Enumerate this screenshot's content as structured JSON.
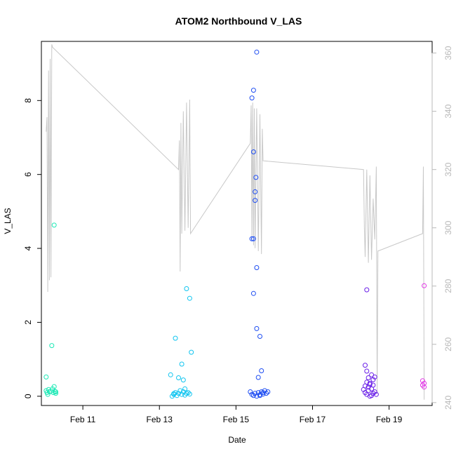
{
  "chart_data": {
    "type": "scatter",
    "title": "ATOM2 Northbound V_LAS",
    "xlabel": "Date",
    "ylabel": "V_LAS",
    "xlim": [
      "2024-02-09T22:00",
      "2024-02-20T03:00"
    ],
    "ylim": [
      -0.25,
      9.6
    ],
    "ylim_right": [
      239,
      364
    ],
    "x_ticks": [
      {
        "label": "Feb 11",
        "x": "2024-02-11T00:00"
      },
      {
        "label": "Feb 13",
        "x": "2024-02-13T00:00"
      },
      {
        "label": "Feb 15",
        "x": "2024-02-15T00:00"
      },
      {
        "label": "Feb 17",
        "x": "2024-02-17T00:00"
      },
      {
        "label": "Feb 19",
        "x": "2024-02-19T00:00"
      }
    ],
    "y_ticks": [
      {
        "label": "0",
        "v": 0
      },
      {
        "label": "2",
        "v": 2
      },
      {
        "label": "4",
        "v": 4
      },
      {
        "label": "6",
        "v": 6
      },
      {
        "label": "8",
        "v": 8
      }
    ],
    "y_right_ticks": [
      {
        "label": "240",
        "v": 240
      },
      {
        "label": "260",
        "v": 260
      },
      {
        "label": "280",
        "v": 280
      },
      {
        "label": "300",
        "v": 300
      },
      {
        "label": "320",
        "v": 320
      },
      {
        "label": "340",
        "v": 340
      },
      {
        "label": "360",
        "v": 360
      }
    ],
    "grid": false,
    "series": [
      {
        "color": "#1de9b6",
        "points": [
          [
            "2024-02-10T01:00",
            0.15
          ],
          [
            "2024-02-10T01:30",
            0.1
          ],
          [
            "2024-02-10T02:00",
            0.05
          ],
          [
            "2024-02-10T02:30",
            0.18
          ],
          [
            "2024-02-10T03:00",
            0.12
          ],
          [
            "2024-02-10T01:00",
            0.52
          ],
          [
            "2024-02-10T04:00",
            0.14
          ],
          [
            "2024-02-10T05:00",
            0.2
          ],
          [
            "2024-02-10T05:30",
            0.1
          ],
          [
            "2024-02-10T04:30",
            1.37
          ],
          [
            "2024-02-10T06:00",
            0.26
          ],
          [
            "2024-02-10T06:30",
            0.13
          ],
          [
            "2024-02-10T07:00",
            0.12
          ],
          [
            "2024-02-10T07:00",
            0.08
          ],
          [
            "2024-02-10T06:00",
            4.63
          ]
        ]
      },
      {
        "color": "#11c5f0",
        "points": [
          [
            "2024-02-13T08:00",
            0.0
          ],
          [
            "2024-02-13T09:00",
            0.05
          ],
          [
            "2024-02-13T10:00",
            0.1
          ],
          [
            "2024-02-13T11:00",
            0.02
          ],
          [
            "2024-02-13T12:00",
            0.08
          ],
          [
            "2024-02-13T13:00",
            0.15
          ],
          [
            "2024-02-13T14:00",
            0.05
          ],
          [
            "2024-02-13T15:00",
            0.12
          ],
          [
            "2024-02-13T16:00",
            0.2
          ],
          [
            "2024-02-13T17:00",
            0.08
          ],
          [
            "2024-02-13T18:00",
            0.1
          ],
          [
            "2024-02-13T19:00",
            0.06
          ],
          [
            "2024-02-13T07:00",
            0.58
          ],
          [
            "2024-02-13T12:00",
            0.5
          ],
          [
            "2024-02-13T15:00",
            0.44
          ],
          [
            "2024-02-13T10:00",
            1.57
          ],
          [
            "2024-02-13T14:00",
            0.87
          ],
          [
            "2024-02-13T17:00",
            2.91
          ],
          [
            "2024-02-13T19:00",
            2.65
          ],
          [
            "2024-02-13T20:00",
            1.19
          ],
          [
            "2024-02-13T09:00",
            0.07
          ],
          [
            "2024-02-13T16:00",
            0.03
          ]
        ]
      },
      {
        "color": "#1f4ef2",
        "points": [
          [
            "2024-02-15T09:00",
            0.12
          ],
          [
            "2024-02-15T10:00",
            0.05
          ],
          [
            "2024-02-15T11:00",
            0.02
          ],
          [
            "2024-02-15T12:00",
            0.08
          ],
          [
            "2024-02-15T13:00",
            0.0
          ],
          [
            "2024-02-15T14:00",
            0.1
          ],
          [
            "2024-02-15T15:00",
            0.04
          ],
          [
            "2024-02-15T16:00",
            0.12
          ],
          [
            "2024-02-15T17:00",
            0.06
          ],
          [
            "2024-02-15T18:00",
            0.15
          ],
          [
            "2024-02-15T19:00",
            0.08
          ],
          [
            "2024-02-15T20:00",
            0.12
          ],
          [
            "2024-02-15T10:00",
            8.07
          ],
          [
            "2024-02-15T11:00",
            8.28
          ],
          [
            "2024-02-15T13:00",
            9.31
          ],
          [
            "2024-02-15T11:00",
            6.61
          ],
          [
            "2024-02-15T12:30",
            5.92
          ],
          [
            "2024-02-15T12:00",
            5.53
          ],
          [
            "2024-02-15T12:00",
            5.3
          ],
          [
            "2024-02-15T10:00",
            4.26
          ],
          [
            "2024-02-15T11:00",
            4.26
          ],
          [
            "2024-02-15T13:00",
            3.48
          ],
          [
            "2024-02-15T11:00",
            2.78
          ],
          [
            "2024-02-15T13:00",
            1.83
          ],
          [
            "2024-02-15T15:00",
            1.62
          ],
          [
            "2024-02-15T16:00",
            0.69
          ],
          [
            "2024-02-15T14:00",
            0.51
          ],
          [
            "2024-02-15T15:00",
            0.02
          ],
          [
            "2024-02-15T17:00",
            0.1
          ]
        ]
      },
      {
        "color": "#6a1fe8",
        "points": [
          [
            "2024-02-18T09:00",
            0.84
          ],
          [
            "2024-02-18T10:00",
            0.68
          ],
          [
            "2024-02-18T09:00",
            0.28
          ],
          [
            "2024-02-18T10:00",
            0.38
          ],
          [
            "2024-02-18T11:00",
            0.5
          ],
          [
            "2024-02-18T12:00",
            0.32
          ],
          [
            "2024-02-18T13:00",
            0.58
          ],
          [
            "2024-02-18T14:00",
            0.45
          ],
          [
            "2024-02-18T15:00",
            0.52
          ],
          [
            "2024-02-18T09:00",
            0.1
          ],
          [
            "2024-02-18T10:00",
            0.05
          ],
          [
            "2024-02-18T11:00",
            0.15
          ],
          [
            "2024-02-18T12:00",
            0.0
          ],
          [
            "2024-02-18T13:00",
            0.2
          ],
          [
            "2024-02-18T14:00",
            0.08
          ],
          [
            "2024-02-18T15:00",
            0.12
          ],
          [
            "2024-02-18T11:00",
            0.25
          ],
          [
            "2024-02-18T12:00",
            0.35
          ],
          [
            "2024-02-18T10:00",
            2.88
          ],
          [
            "2024-02-18T08:00",
            0.18
          ],
          [
            "2024-02-18T13:00",
            0.02
          ],
          [
            "2024-02-18T14:00",
            0.3
          ],
          [
            "2024-02-18T16:00",
            0.05
          ]
        ]
      },
      {
        "color": "#e233e6",
        "points": [
          [
            "2024-02-19T21:00",
            0.42
          ],
          [
            "2024-02-19T21:00",
            0.3
          ],
          [
            "2024-02-19T22:00",
            0.25
          ],
          [
            "2024-02-19T22:00",
            0.35
          ],
          [
            "2024-02-19T22:00",
            2.99
          ]
        ]
      }
    ],
    "line_series": {
      "color": "#c8c8c8",
      "axis": "right",
      "points": [
        [
          "2024-02-10T01:00",
          333
        ],
        [
          "2024-02-10T01:30",
          338
        ],
        [
          "2024-02-10T02:00",
          278
        ],
        [
          "2024-02-10T02:30",
          354
        ],
        [
          "2024-02-10T03:00",
          282
        ],
        [
          "2024-02-10T03:30",
          358
        ],
        [
          "2024-02-10T04:00",
          283
        ],
        [
          "2024-02-10T04:30",
          363
        ],
        [
          "2024-02-10T05:00",
          362
        ],
        [
          "2024-02-13T12:00",
          320
        ],
        [
          "2024-02-13T12:30",
          330
        ],
        [
          "2024-02-13T13:00",
          285
        ],
        [
          "2024-02-13T13:30",
          336
        ],
        [
          "2024-02-13T14:00",
          298
        ],
        [
          "2024-02-13T15:00",
          340
        ],
        [
          "2024-02-13T16:00",
          299
        ],
        [
          "2024-02-13T17:00",
          343
        ],
        [
          "2024-02-13T18:00",
          300
        ],
        [
          "2024-02-13T19:00",
          344
        ],
        [
          "2024-02-13T19:30",
          298
        ],
        [
          "2024-02-15T09:00",
          329
        ],
        [
          "2024-02-15T09:30",
          342
        ],
        [
          "2024-02-15T10:00",
          296
        ],
        [
          "2024-02-15T10:30",
          343
        ],
        [
          "2024-02-15T11:00",
          294
        ],
        [
          "2024-02-15T11:30",
          341
        ],
        [
          "2024-02-15T12:00",
          293
        ],
        [
          "2024-02-15T13:00",
          341
        ],
        [
          "2024-02-15T14:00",
          292
        ],
        [
          "2024-02-15T15:00",
          339
        ],
        [
          "2024-02-15T16:00",
          291
        ],
        [
          "2024-02-15T16:30",
          334
        ],
        [
          "2024-02-15T17:00",
          323
        ],
        [
          "2024-02-18T08:00",
          320
        ],
        [
          "2024-02-18T08:30",
          300
        ],
        [
          "2024-02-18T09:00",
          290
        ],
        [
          "2024-02-18T10:00",
          320
        ],
        [
          "2024-02-18T11:00",
          288
        ],
        [
          "2024-02-18T12:00",
          318
        ],
        [
          "2024-02-18T13:00",
          289
        ],
        [
          "2024-02-18T14:00",
          310
        ],
        [
          "2024-02-18T15:00",
          296
        ],
        [
          "2024-02-18T16:00",
          321
        ],
        [
          "2024-02-18T16:30",
          243
        ],
        [
          "2024-02-18T17:00",
          292
        ],
        [
          "2024-02-19T21:00",
          298
        ],
        [
          "2024-02-19T21:30",
          321
        ],
        [
          "2024-02-19T22:00",
          241
        ]
      ]
    }
  }
}
